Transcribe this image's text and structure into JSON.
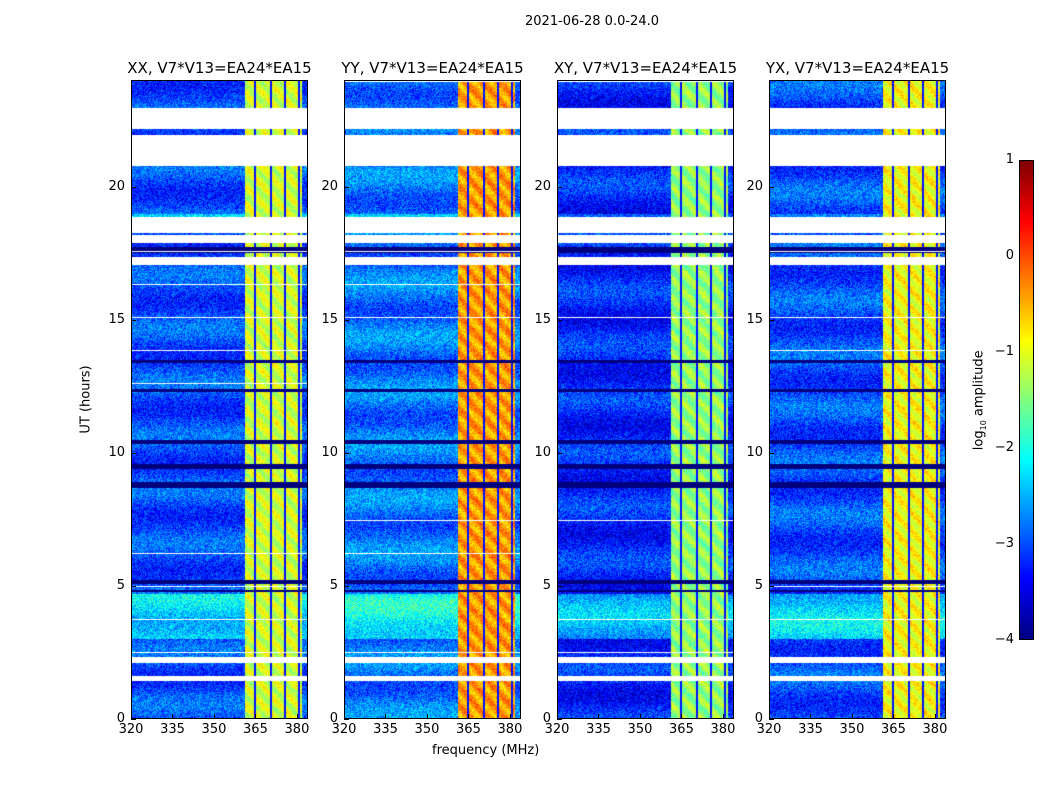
{
  "chart_data": {
    "type": "heatmap",
    "title": "2021-06-28 0.0-24.0",
    "xlabel": "frequency (MHz)",
    "ylabel": "UT (hours)",
    "xlim": [
      320,
      384
    ],
    "ylim": [
      0,
      24
    ],
    "xticks": [
      "320",
      "335",
      "350",
      "365",
      "380"
    ],
    "xtick_values": [
      320,
      335,
      350,
      365,
      380
    ],
    "yticks": [
      "0",
      "5",
      "10",
      "15",
      "20"
    ],
    "ytick_values": [
      0,
      5,
      10,
      15,
      20
    ],
    "colorbar": {
      "label": "log10 amplitude",
      "label_main": "log",
      "label_sub": "10",
      "label_tail": " amplitude",
      "range": [
        -4,
        1
      ],
      "ticks": [
        "1",
        "0",
        "−1",
        "−2",
        "−3",
        "−4"
      ],
      "tick_values": [
        1,
        0,
        -1,
        -2,
        -3,
        -4
      ],
      "colormap": "jet"
    },
    "panels": [
      {
        "title": "XX, V7*V13=EA24*EA15",
        "background_log_amp": -3.0,
        "band_log_amp": -1.1
      },
      {
        "title": "YY, V7*V13=EA24*EA15",
        "background_log_amp": -2.8,
        "band_log_amp": -0.4
      },
      {
        "title": "XY, V7*V13=EA24*EA15",
        "background_log_amp": -3.2,
        "band_log_amp": -1.4
      },
      {
        "title": "YX, V7*V13=EA24*EA15",
        "background_log_amp": -3.0,
        "band_log_amp": -0.9
      }
    ],
    "rfi_band_mhz": [
      361,
      382
    ],
    "band_dark_channels_mhz": [
      364.8,
      370.5,
      375.8,
      381
    ],
    "flagged_hours": [
      [
        22.2,
        23.0
      ],
      [
        20.8,
        22.0
      ],
      [
        18.3,
        18.9
      ],
      [
        17.9,
        18.2
      ],
      [
        17.1,
        17.4
      ],
      [
        2.1,
        2.3
      ],
      [
        1.4,
        1.6
      ]
    ],
    "low_amp_hours": [
      [
        17.55,
        17.75
      ],
      [
        13.4,
        13.5
      ],
      [
        12.3,
        12.4
      ],
      [
        10.35,
        10.5
      ],
      [
        9.4,
        9.6
      ],
      [
        8.7,
        8.9
      ],
      [
        5.05,
        5.2
      ],
      [
        4.75,
        4.85
      ]
    ]
  }
}
